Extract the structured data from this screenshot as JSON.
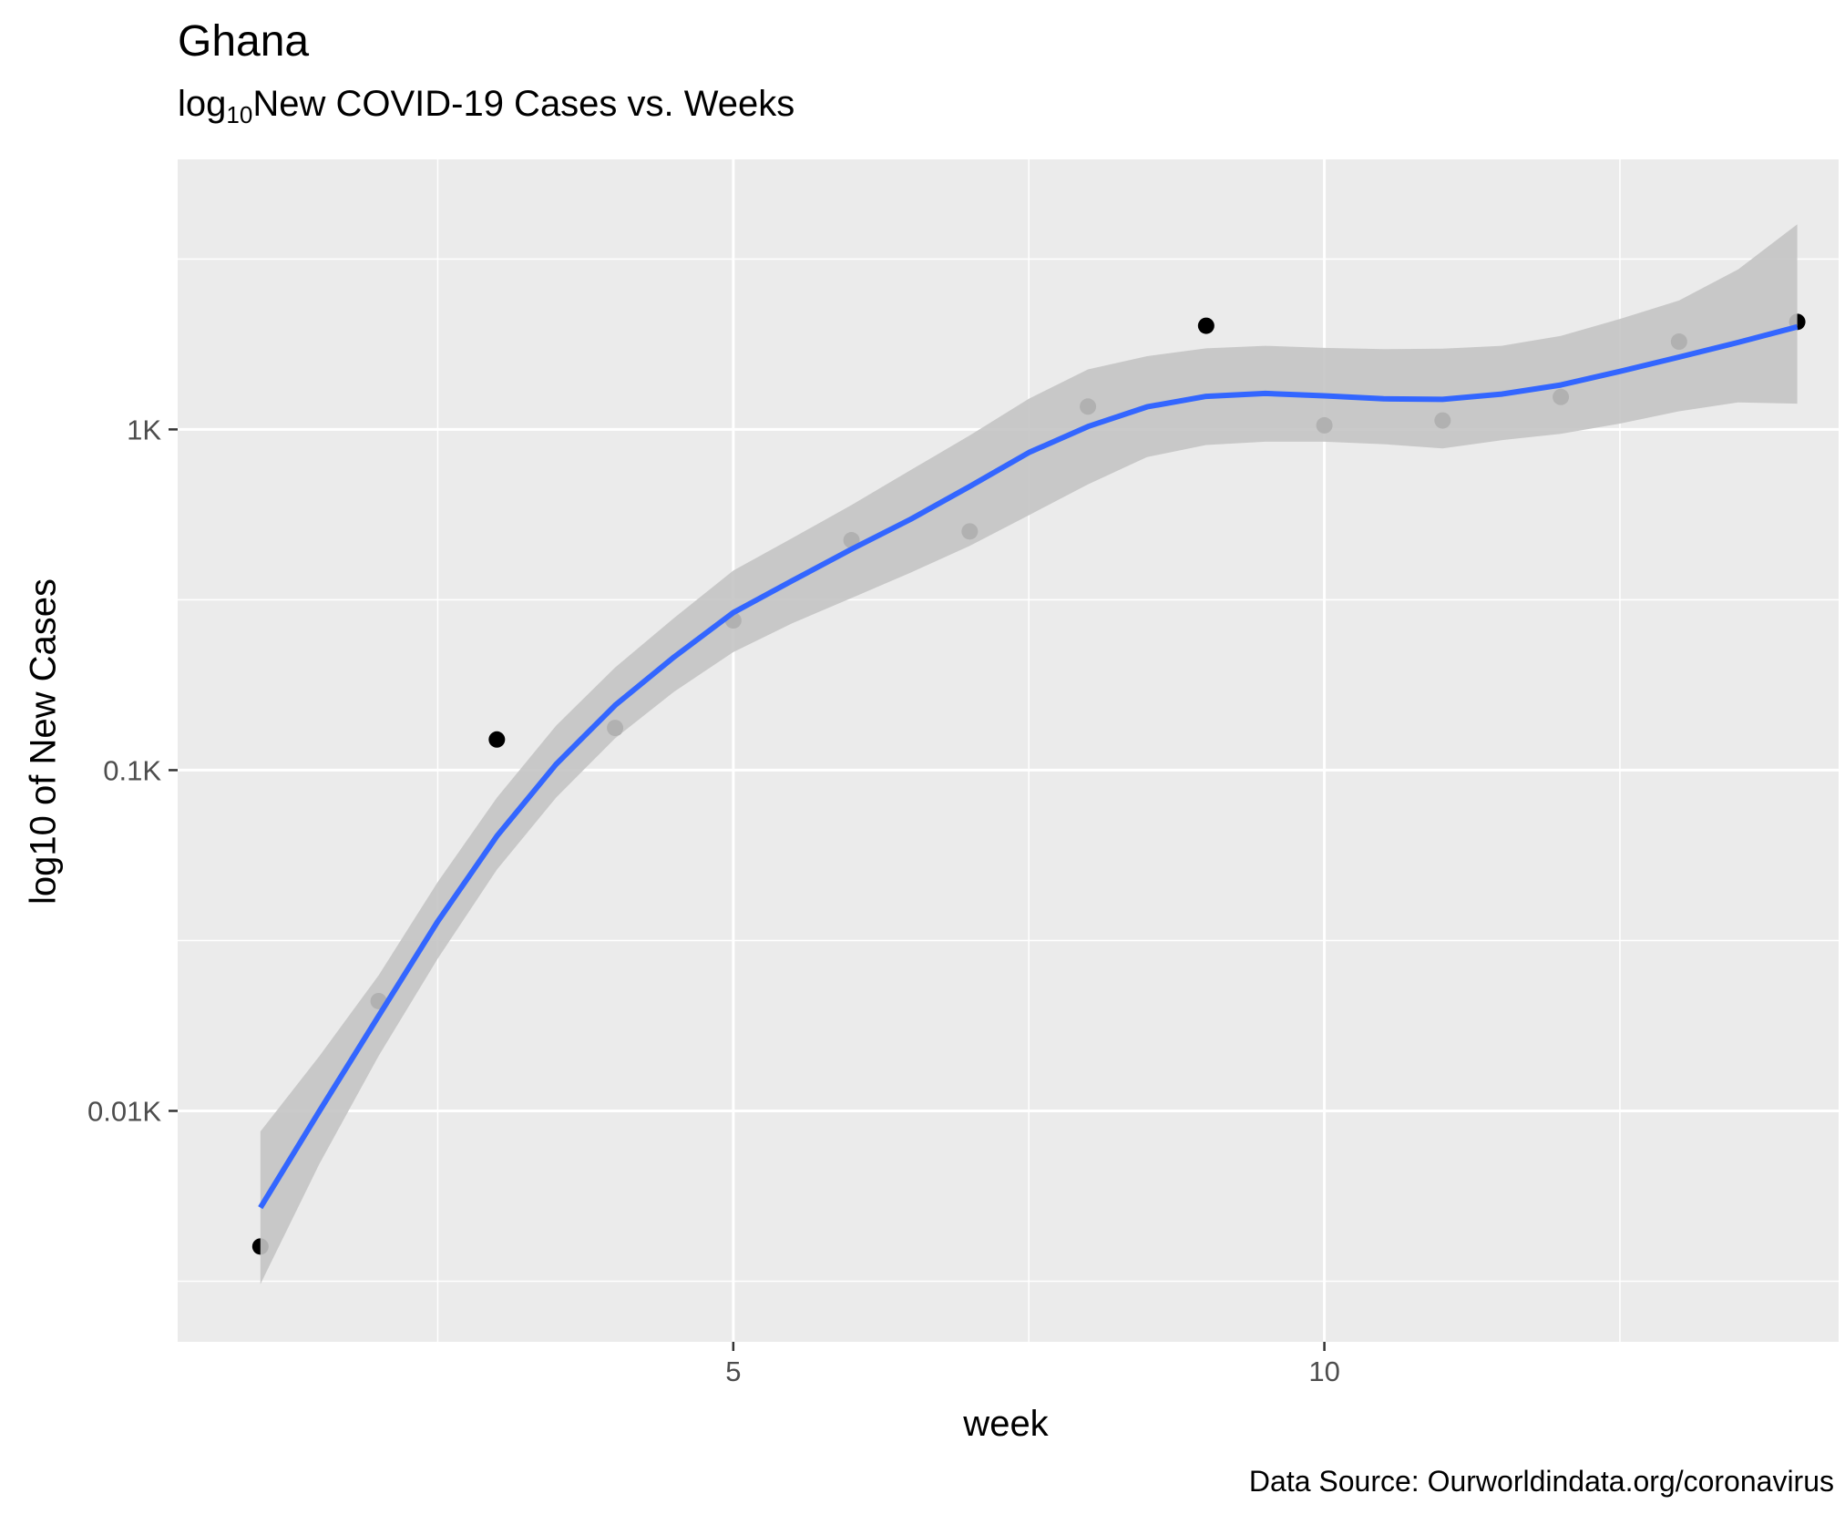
{
  "title": "Ghana",
  "subtitle": {
    "prefix": "log",
    "sub": "10",
    "suffix": "New COVID-19 Cases vs. Weeks"
  },
  "caption": "Data Source: Ourworldindata.org/coronavirus",
  "colors": {
    "panel": "#ebebeb",
    "grid": "#ffffff",
    "point": "#000000",
    "smooth_line": "#3366ff",
    "confidence_band": "#c4c4c4"
  },
  "chart_data": {
    "type": "scatter",
    "xlabel": "week",
    "ylabel": "log10 of New Cases",
    "x_scale": "linear",
    "y_scale": "log10",
    "xlim": [
      0.3,
      14.35
    ],
    "ylim": [
      2.1,
      6200
    ],
    "x_ticks": [
      {
        "value": 5,
        "label": "5"
      },
      {
        "value": 10,
        "label": "10"
      }
    ],
    "y_ticks": [
      {
        "value": 10,
        "label": "0.01K"
      },
      {
        "value": 100,
        "label": "0.1K"
      },
      {
        "value": 1000,
        "label": "1K"
      }
    ],
    "grid": true,
    "points": {
      "x": [
        1,
        2,
        3,
        4,
        5,
        6,
        7,
        8,
        9,
        10,
        11,
        12,
        13,
        14
      ],
      "y": [
        4,
        21,
        123,
        133,
        275,
        473,
        502,
        1167,
        2015,
        1028,
        1062,
        1245,
        1810,
        2068
      ]
    },
    "smooth": {
      "method": "loess",
      "x": [
        1,
        1.5,
        2,
        2.5,
        3,
        3.5,
        4,
        4.5,
        5,
        5.5,
        6,
        6.5,
        7,
        7.5,
        8,
        8.5,
        9,
        9.5,
        10,
        10.5,
        11,
        11.5,
        12,
        12.5,
        13,
        13.5,
        14
      ],
      "y": [
        5.2,
        10,
        19,
        36,
        64,
        104,
        155,
        215,
        290,
        360,
        445,
        545,
        680,
        855,
        1020,
        1165,
        1250,
        1275,
        1255,
        1230,
        1225,
        1270,
        1350,
        1480,
        1630,
        1800,
        2000
      ],
      "lower": [
        3.1,
        7,
        14.5,
        28,
        51,
        83,
        124,
        170,
        222,
        270,
        320,
        380,
        455,
        560,
        690,
        830,
        900,
        920,
        920,
        905,
        880,
        930,
        970,
        1040,
        1130,
        1200,
        1190
      ],
      "upper": [
        8.7,
        14.5,
        25,
        47,
        83,
        135,
        200,
        280,
        385,
        480,
        600,
        760,
        960,
        1230,
        1500,
        1640,
        1730,
        1760,
        1735,
        1720,
        1725,
        1760,
        1880,
        2110,
        2390,
        2950,
        4000
      ]
    }
  }
}
